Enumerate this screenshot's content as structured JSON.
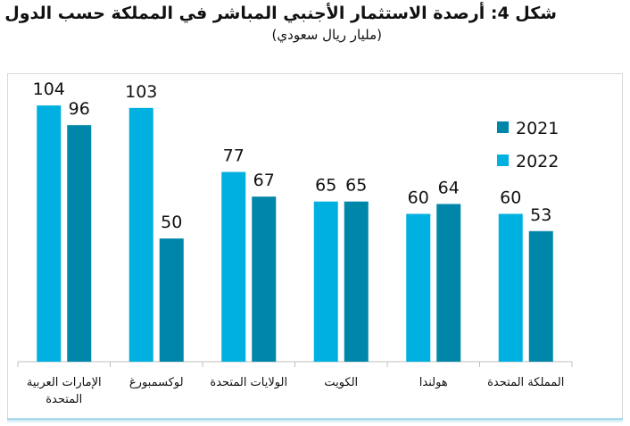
{
  "chart_data": {
    "type": "bar",
    "title": "شكل 4: أرصدة الاستثمار الأجنبي المباشر في المملكة حسب الدول",
    "subtitle": "(مليار ريال سعودي)",
    "categories": [
      "الإمارات العربية المتحدة",
      "لوكسمبورغ",
      "الولايات المتحدة",
      "الكويت",
      "هولندا",
      "المملكة المتحدة"
    ],
    "series": [
      {
        "name": "2022",
        "values": [
          104,
          103,
          77,
          65,
          60,
          60
        ]
      },
      {
        "name": "2021",
        "values": [
          96,
          50,
          67,
          65,
          64,
          53
        ]
      }
    ],
    "ylim": [
      0,
      110
    ],
    "grid": false,
    "legend_position": "right",
    "colors": {
      "2022": "#00b0e0",
      "2021": "#0086a8"
    }
  }
}
